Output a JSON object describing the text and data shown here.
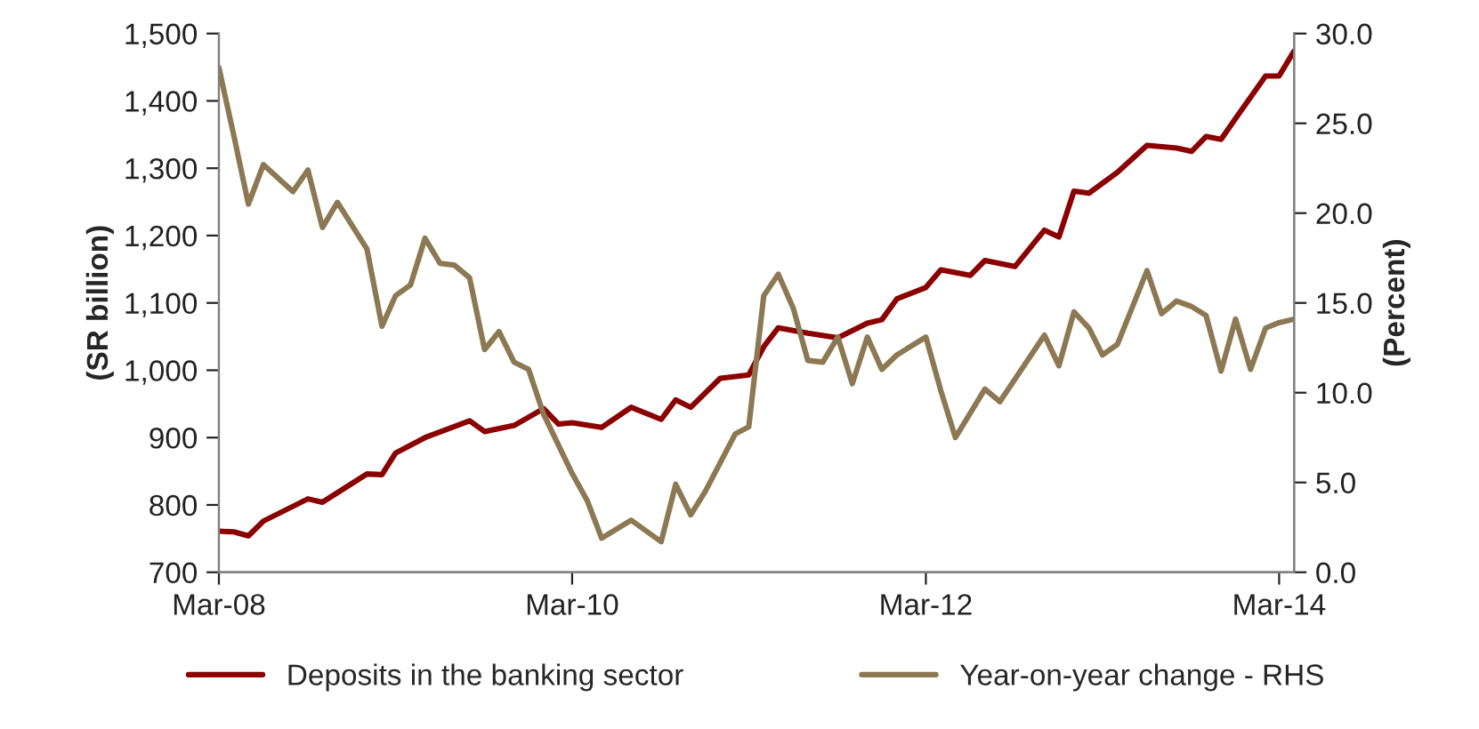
{
  "chart_data": {
    "type": "line",
    "ylabel": "(SR billion)",
    "y2label": "(Percent)",
    "series": [
      {
        "name": "Deposits in the banking sector",
        "color": "#8b0000",
        "x": [
          "2008-03",
          "2008-04",
          "2008-05",
          "2008-06",
          "2008-09",
          "2008-10",
          "2009-01",
          "2009-02",
          "2009-03",
          "2009-05",
          "2009-08",
          "2009-09",
          "2009-11",
          "2010-01",
          "2010-02",
          "2010-03",
          "2010-05",
          "2010-07",
          "2010-09",
          "2010-10",
          "2010-11",
          "2011-01",
          "2011-03",
          "2011-04",
          "2011-05",
          "2011-07",
          "2011-09",
          "2011-11",
          "2011-12",
          "2012-01",
          "2012-03",
          "2012-04",
          "2012-06",
          "2012-07",
          "2012-09",
          "2012-11",
          "2012-12",
          "2013-01",
          "2013-02",
          "2013-04",
          "2013-06",
          "2013-08",
          "2013-09",
          "2013-10",
          "2013-11",
          "2013-12",
          "2014-02",
          "2014-03",
          "2014-04"
        ],
        "values": [
          761,
          760,
          754,
          776,
          809,
          804,
          846,
          845,
          877,
          900,
          925,
          909,
          918,
          943,
          920,
          922,
          915,
          945,
          927,
          956,
          945,
          988,
          993,
          1035,
          1063,
          1055,
          1048,
          1070,
          1075,
          1106,
          1123,
          1149,
          1141,
          1163,
          1154,
          1208,
          1198,
          1266,
          1263,
          1294,
          1334,
          1330,
          1325,
          1347,
          1343,
          1374,
          1437,
          1437,
          1474
        ]
      },
      {
        "name": "Year-on-year change - RHS",
        "color": "#8c7853",
        "axis": "y2",
        "x": [
          "2008-03",
          "2008-04",
          "2008-05",
          "2008-06",
          "2008-08",
          "2008-09",
          "2008-10",
          "2008-11",
          "2009-01",
          "2009-02",
          "2009-03",
          "2009-04",
          "2009-05",
          "2009-06",
          "2009-07",
          "2009-08",
          "2009-09",
          "2009-10",
          "2009-11",
          "2009-12",
          "2010-01",
          "2010-03",
          "2010-04",
          "2010-05",
          "2010-07",
          "2010-09",
          "2010-10",
          "2010-11",
          "2010-12",
          "2011-02",
          "2011-03",
          "2011-04",
          "2011-05",
          "2011-06",
          "2011-07",
          "2011-08",
          "2011-09",
          "2011-10",
          "2011-11",
          "2011-12",
          "2012-01",
          "2012-03",
          "2012-04",
          "2012-05",
          "2012-07",
          "2012-08",
          "2012-11",
          "2012-12",
          "2013-01",
          "2013-02",
          "2013-03",
          "2013-04",
          "2013-06",
          "2013-07",
          "2013-08",
          "2013-09",
          "2013-10",
          "2013-11",
          "2013-12",
          "2014-01",
          "2014-02",
          "2014-03",
          "2014-04"
        ],
        "values": [
          28.1,
          24.3,
          20.5,
          22.7,
          21.2,
          22.4,
          19.2,
          20.6,
          18.0,
          13.7,
          15.4,
          16.0,
          18.6,
          17.2,
          17.1,
          16.4,
          12.4,
          13.4,
          11.7,
          11.3,
          8.8,
          5.5,
          4.0,
          1.9,
          2.9,
          1.7,
          4.9,
          3.2,
          4.5,
          7.7,
          8.1,
          15.4,
          16.6,
          14.7,
          11.8,
          11.7,
          13.1,
          10.5,
          13.1,
          11.3,
          12.1,
          13.1,
          10.1,
          7.5,
          10.2,
          9.5,
          13.2,
          11.5,
          14.5,
          13.6,
          12.1,
          12.7,
          16.8,
          14.4,
          15.1,
          14.8,
          14.3,
          11.2,
          14.1,
          11.3,
          13.6,
          13.9,
          14.1
        ]
      }
    ],
    "xlim": [
      "2008-03",
      "2014-04"
    ],
    "xticks": [
      {
        "value": "2008-03",
        "label": "Mar-08"
      },
      {
        "value": "2010-03",
        "label": "Mar-10"
      },
      {
        "value": "2012-03",
        "label": "Mar-12"
      },
      {
        "value": "2014-03",
        "label": "Mar-14"
      }
    ],
    "ylim": [
      700,
      1500
    ],
    "yticks": [
      700,
      800,
      900,
      {
        "value": 1000,
        "label": "1,000"
      },
      {
        "value": 1100,
        "label": "1,100"
      },
      {
        "value": 1200,
        "label": "1,200"
      },
      {
        "value": 1300,
        "label": "1,300"
      },
      {
        "value": 1400,
        "label": "1,400"
      },
      {
        "value": 1500,
        "label": "1,500"
      }
    ],
    "y2lim": [
      0,
      30
    ],
    "y2ticks": [
      {
        "value": 0,
        "label": "0.0"
      },
      {
        "value": 5,
        "label": "5.0"
      },
      {
        "value": 10,
        "label": "10.0"
      },
      {
        "value": 15,
        "label": "15.0"
      },
      {
        "value": 20,
        "label": "20.0"
      },
      {
        "value": 25,
        "label": "25.0"
      },
      {
        "value": 30,
        "label": "30.0"
      }
    ],
    "legend": "bottom",
    "grid": false,
    "marker": "none",
    "line_style": "solid"
  }
}
